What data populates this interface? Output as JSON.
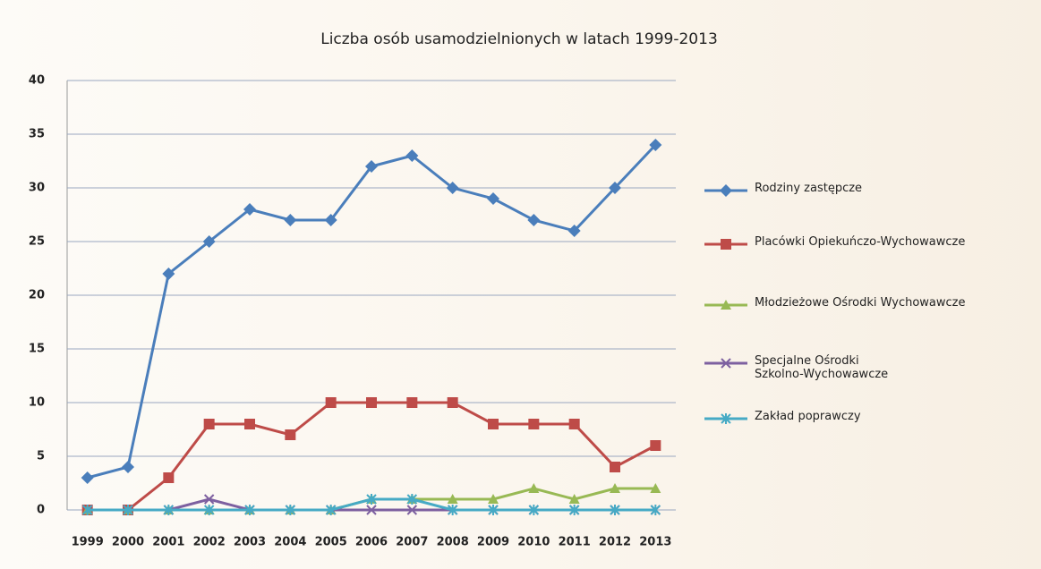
{
  "chart_data": {
    "type": "line",
    "title": "Liczba osób usamodzielnionych w latach 1999-2013",
    "categories": [
      "1999",
      "2000",
      "2001",
      "2002",
      "2003",
      "2004",
      "2005",
      "2006",
      "2007",
      "2008",
      "2009",
      "2010",
      "2011",
      "2012",
      "2013"
    ],
    "ylim": [
      0,
      40
    ],
    "yticks": [
      0,
      5,
      10,
      15,
      20,
      25,
      30,
      35,
      40
    ],
    "grid": true,
    "legend": "right",
    "series": [
      {
        "name": "Rodziny zastępcze",
        "color": "#4a7ebb",
        "marker": "diamond",
        "values": [
          3,
          4,
          22,
          25,
          28,
          27,
          27,
          32,
          33,
          30,
          29,
          27,
          26,
          30,
          34
        ]
      },
      {
        "name": "Placówki Opiekuńczo-Wychowawcze",
        "color": "#be4b48",
        "marker": "square",
        "values": [
          0,
          0,
          3,
          8,
          8,
          7,
          10,
          10,
          10,
          10,
          8,
          8,
          8,
          4,
          6
        ]
      },
      {
        "name": "Młodzieżowe Ośrodki Wychowawcze",
        "color": "#98b954",
        "marker": "triangle",
        "values": [
          0,
          0,
          0,
          0,
          0,
          0,
          0,
          1,
          1,
          1,
          1,
          2,
          1,
          2,
          2
        ]
      },
      {
        "name": "Specjalne Ośrodki Szkolno-Wychowawcze",
        "color": "#7d60a0",
        "marker": "x",
        "values": [
          0,
          0,
          0,
          1,
          0,
          0,
          0,
          0,
          0,
          0,
          0,
          0,
          0,
          0,
          0
        ]
      },
      {
        "name": "Zakład poprawczy",
        "color": "#46aac5",
        "marker": "star",
        "values": [
          0,
          0,
          0,
          0,
          0,
          0,
          0,
          1,
          1,
          0,
          0,
          0,
          0,
          0,
          0
        ]
      }
    ]
  }
}
